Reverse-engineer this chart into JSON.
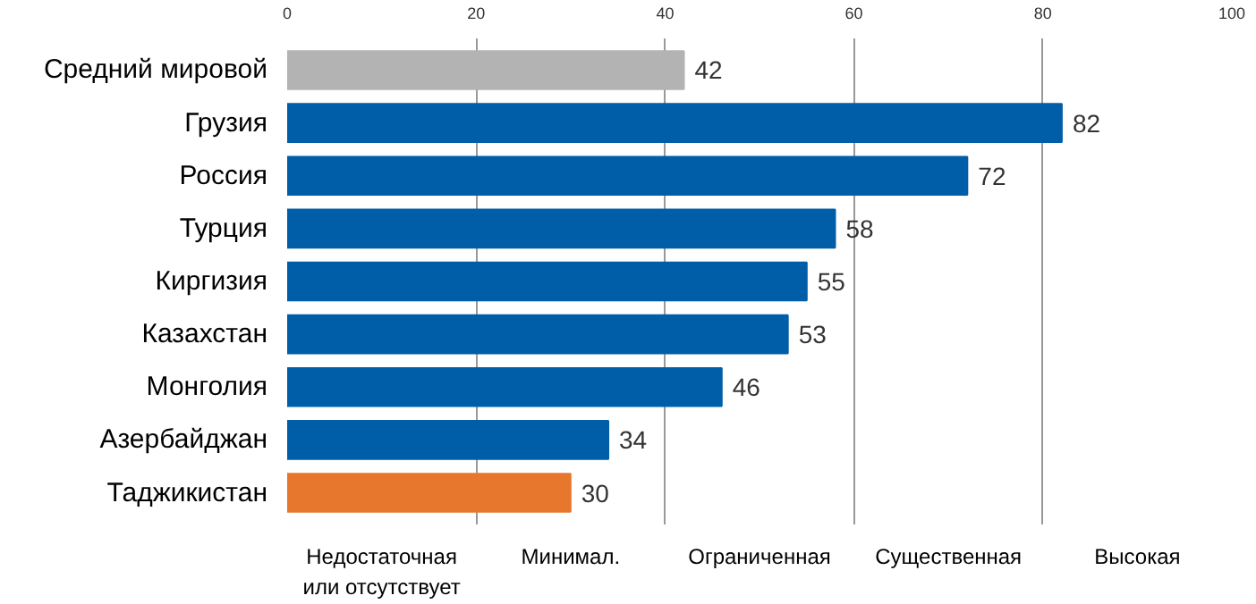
{
  "chart_data": {
    "type": "bar",
    "orientation": "horizontal",
    "categories": [
      "Средний мировой",
      "Грузия",
      "Россия",
      "Турция",
      "Киргизия",
      "Казахстан",
      "Монголия",
      "Азербайджан",
      "Таджикистан"
    ],
    "values": [
      42,
      82,
      72,
      58,
      55,
      53,
      46,
      34,
      30
    ],
    "colors": [
      "#b3b3b3",
      "#005ea8",
      "#005ea8",
      "#005ea8",
      "#005ea8",
      "#005ea8",
      "#005ea8",
      "#005ea8",
      "#e8772e"
    ],
    "xlim": [
      0,
      100
    ],
    "xticks": [
      0,
      20,
      40,
      60,
      80,
      100
    ],
    "grid": "x",
    "data_labels": true,
    "annotations": [
      "Недостаточная\nили отсутствует",
      "Минимал.",
      "Ограниченная",
      "Существенная",
      "Высокая"
    ]
  }
}
